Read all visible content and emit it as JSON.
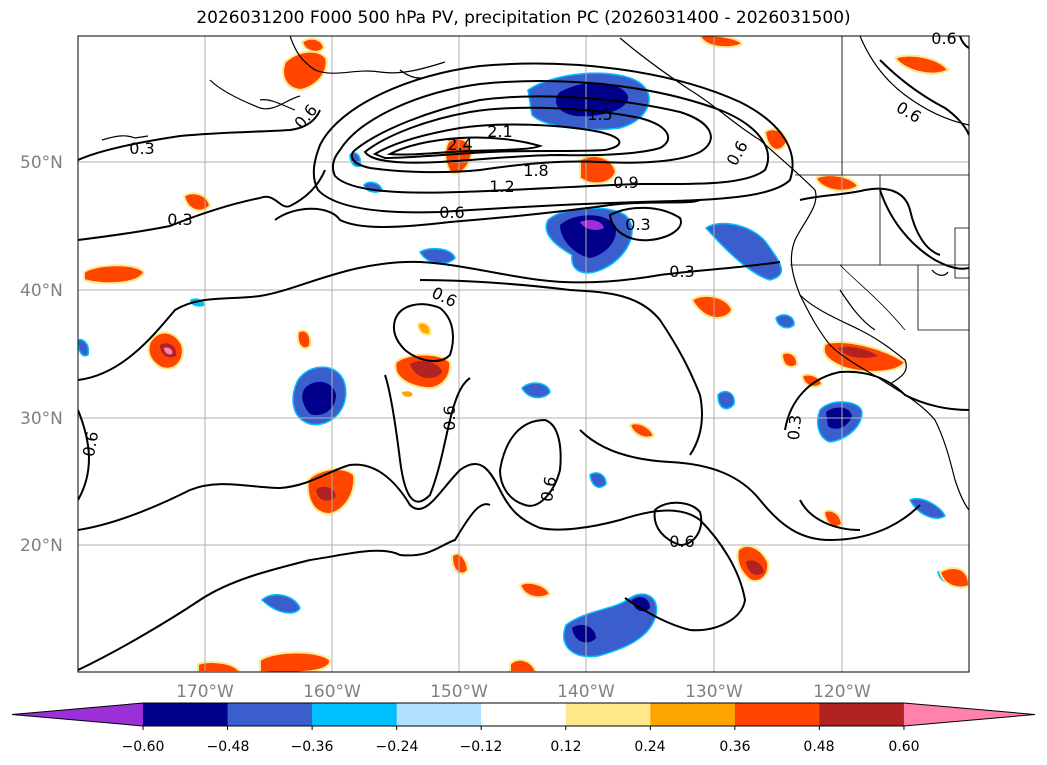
{
  "title": "2026031200 F000 500 hPa PV, precipitation PC (2026031400 - 2026031500)",
  "lat_labels": [
    "50°N",
    "40°N",
    "30°N",
    "20°N"
  ],
  "lon_labels": [
    "170°W",
    "160°W",
    "150°W",
    "140°W",
    "130°W",
    "120°W"
  ],
  "contour_labels": [
    "0.3",
    "0.6",
    "2.4",
    "2.1",
    "1.5",
    "1.8",
    "1.2",
    "0.9",
    "0.6",
    "0.3",
    "0.3",
    "0.3",
    "0.6",
    "0.6",
    "0.6",
    "0.6",
    "0.6",
    "0.3",
    "0.6",
    "0.6",
    "0.6"
  ],
  "colorbar": {
    "ticks": [
      "−0.60",
      "−0.48",
      "−0.36",
      "−0.24",
      "−0.12",
      "0.12",
      "0.24",
      "0.36",
      "0.48",
      "0.60"
    ],
    "colors": [
      "#9b30d9",
      "#00008b",
      "#3a5fcd",
      "#00bfff",
      "#b0e2ff",
      "#ffffff",
      "#ffe98a",
      "#ffa500",
      "#ff4500",
      "#b22222",
      "#ff82ab"
    ]
  }
}
